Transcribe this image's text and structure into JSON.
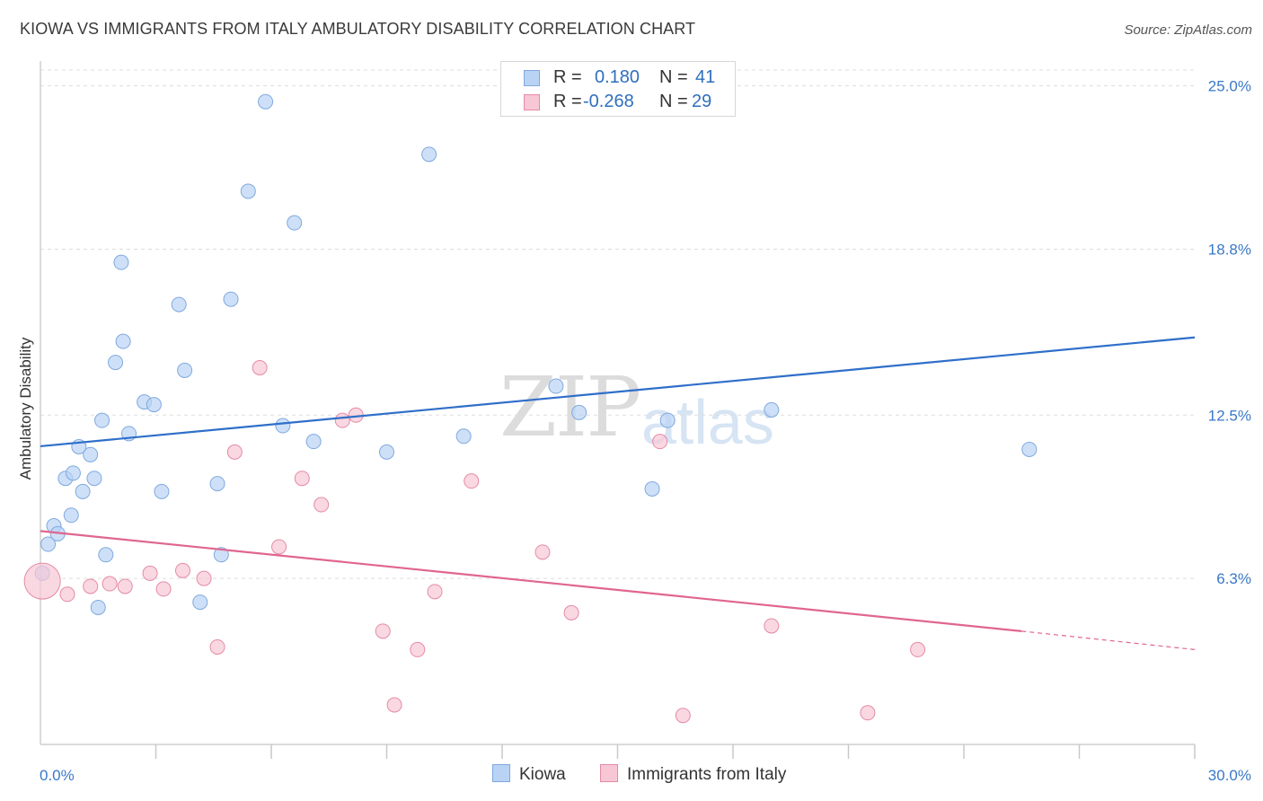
{
  "title": "KIOWA VS IMMIGRANTS FROM ITALY AMBULATORY DISABILITY CORRELATION CHART",
  "source": "Source: ZipAtlas.com",
  "watermark": {
    "zip": "ZIP",
    "atlas": "atlas"
  },
  "legend": {
    "rows": [
      {
        "r_label": "R =",
        "r_value": "0.180",
        "n_label": "N =",
        "n_value": "41"
      },
      {
        "r_label": "R =",
        "r_value": "-0.268",
        "n_label": "N =",
        "n_value": "29"
      }
    ]
  },
  "bottom_legend": {
    "kiowa": "Kiowa",
    "italy": "Immigrants from Italy"
  },
  "colors": {
    "kiowa_fill": "#b9d3f5",
    "kiowa_stroke": "#7fa9de",
    "kiowa_line": "#2f6fc9",
    "italy_fill": "#f8c7d5",
    "italy_stroke": "#e48aa6",
    "italy_line": "#e0668f",
    "axis_text": "#3a78c8",
    "grid": "#dddddd"
  },
  "chart_data": {
    "type": "scatter",
    "title": "KIOWA VS IMMIGRANTS FROM ITALY AMBULATORY DISABILITY CORRELATION CHART",
    "xlabel": "",
    "ylabel": "Ambulatory Disability",
    "xlim": [
      0,
      30
    ],
    "ylim": [
      0,
      25.6
    ],
    "x_tick_labels": [
      "0.0%",
      "30.0%"
    ],
    "y_ticks": [
      6.3,
      12.5,
      18.8,
      25.0
    ],
    "y_tick_labels": [
      "6.3%",
      "12.5%",
      "18.8%",
      "25.0%"
    ],
    "grid": true,
    "series": [
      {
        "name": "Kiowa",
        "points": [
          [
            0.05,
            6.5
          ],
          [
            0.2,
            7.6
          ],
          [
            0.35,
            8.3
          ],
          [
            0.45,
            8.0
          ],
          [
            0.65,
            10.1
          ],
          [
            0.8,
            8.7
          ],
          [
            0.85,
            10.3
          ],
          [
            1.0,
            11.3
          ],
          [
            1.1,
            9.6
          ],
          [
            1.3,
            11.0
          ],
          [
            1.4,
            10.1
          ],
          [
            1.5,
            5.2
          ],
          [
            1.6,
            12.3
          ],
          [
            1.7,
            7.2
          ],
          [
            1.95,
            14.5
          ],
          [
            2.1,
            18.3
          ],
          [
            2.15,
            15.3
          ],
          [
            2.3,
            11.8
          ],
          [
            2.7,
            13.0
          ],
          [
            2.95,
            12.9
          ],
          [
            3.15,
            9.6
          ],
          [
            3.6,
            16.7
          ],
          [
            3.75,
            14.2
          ],
          [
            4.15,
            5.4
          ],
          [
            4.6,
            9.9
          ],
          [
            4.7,
            7.2
          ],
          [
            4.95,
            16.9
          ],
          [
            5.4,
            21.0
          ],
          [
            5.85,
            24.4
          ],
          [
            6.3,
            12.1
          ],
          [
            6.6,
            19.8
          ],
          [
            7.1,
            11.5
          ],
          [
            9.0,
            11.1
          ],
          [
            10.1,
            22.4
          ],
          [
            11.0,
            11.7
          ],
          [
            13.4,
            13.6
          ],
          [
            14.0,
            12.6
          ],
          [
            15.9,
            9.7
          ],
          [
            16.3,
            12.3
          ],
          [
            19.0,
            12.7
          ],
          [
            25.7,
            11.2
          ]
        ]
      },
      {
        "name": "Immigrants from Italy",
        "points": [
          [
            0.05,
            6.2
          ],
          [
            0.7,
            5.7
          ],
          [
            1.3,
            6.0
          ],
          [
            1.8,
            6.1
          ],
          [
            2.2,
            6.0
          ],
          [
            2.85,
            6.5
          ],
          [
            3.2,
            5.9
          ],
          [
            3.7,
            6.6
          ],
          [
            4.25,
            6.3
          ],
          [
            4.6,
            3.7
          ],
          [
            5.05,
            11.1
          ],
          [
            5.7,
            14.3
          ],
          [
            6.2,
            7.5
          ],
          [
            6.8,
            10.1
          ],
          [
            7.3,
            9.1
          ],
          [
            7.85,
            12.3
          ],
          [
            8.2,
            12.5
          ],
          [
            8.9,
            4.3
          ],
          [
            9.2,
            1.5
          ],
          [
            9.8,
            3.6
          ],
          [
            10.25,
            5.8
          ],
          [
            11.2,
            10.0
          ],
          [
            13.05,
            7.3
          ],
          [
            13.8,
            5.0
          ],
          [
            16.1,
            11.5
          ],
          [
            16.7,
            1.1
          ],
          [
            19.0,
            4.5
          ],
          [
            21.5,
            1.2
          ],
          [
            22.8,
            3.6
          ]
        ]
      }
    ],
    "trendlines": [
      {
        "series": "Kiowa",
        "x": [
          0,
          30
        ],
        "y": [
          11.32,
          15.45
        ]
      },
      {
        "series": "Immigrants from Italy",
        "x": [
          0,
          25.5
        ],
        "y": [
          8.1,
          4.3
        ],
        "dashed_extension_to": [
          30,
          3.6
        ]
      }
    ]
  }
}
